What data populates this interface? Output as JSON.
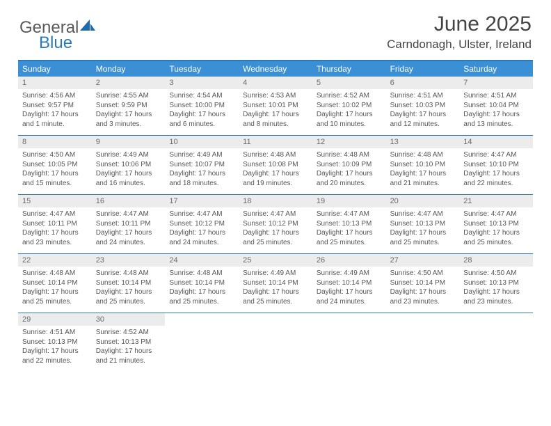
{
  "logo": {
    "line1": "General",
    "line2": "Blue"
  },
  "colors": {
    "accent": "#3b8fd4",
    "accent_border": "#2a7ab8",
    "day_num_bg": "#ececec",
    "day_num_fg": "#6a6a6a",
    "body_text": "#555555",
    "title_text": "#444444"
  },
  "title": "June 2025",
  "location": "Carndonagh, Ulster, Ireland",
  "day_headers": [
    "Sunday",
    "Monday",
    "Tuesday",
    "Wednesday",
    "Thursday",
    "Friday",
    "Saturday"
  ],
  "weeks": [
    [
      {
        "n": "1",
        "sr": "Sunrise: 4:56 AM",
        "ss": "Sunset: 9:57 PM",
        "dl": "Daylight: 17 hours and 1 minute."
      },
      {
        "n": "2",
        "sr": "Sunrise: 4:55 AM",
        "ss": "Sunset: 9:59 PM",
        "dl": "Daylight: 17 hours and 3 minutes."
      },
      {
        "n": "3",
        "sr": "Sunrise: 4:54 AM",
        "ss": "Sunset: 10:00 PM",
        "dl": "Daylight: 17 hours and 6 minutes."
      },
      {
        "n": "4",
        "sr": "Sunrise: 4:53 AM",
        "ss": "Sunset: 10:01 PM",
        "dl": "Daylight: 17 hours and 8 minutes."
      },
      {
        "n": "5",
        "sr": "Sunrise: 4:52 AM",
        "ss": "Sunset: 10:02 PM",
        "dl": "Daylight: 17 hours and 10 minutes."
      },
      {
        "n": "6",
        "sr": "Sunrise: 4:51 AM",
        "ss": "Sunset: 10:03 PM",
        "dl": "Daylight: 17 hours and 12 minutes."
      },
      {
        "n": "7",
        "sr": "Sunrise: 4:51 AM",
        "ss": "Sunset: 10:04 PM",
        "dl": "Daylight: 17 hours and 13 minutes."
      }
    ],
    [
      {
        "n": "8",
        "sr": "Sunrise: 4:50 AM",
        "ss": "Sunset: 10:05 PM",
        "dl": "Daylight: 17 hours and 15 minutes."
      },
      {
        "n": "9",
        "sr": "Sunrise: 4:49 AM",
        "ss": "Sunset: 10:06 PM",
        "dl": "Daylight: 17 hours and 16 minutes."
      },
      {
        "n": "10",
        "sr": "Sunrise: 4:49 AM",
        "ss": "Sunset: 10:07 PM",
        "dl": "Daylight: 17 hours and 18 minutes."
      },
      {
        "n": "11",
        "sr": "Sunrise: 4:48 AM",
        "ss": "Sunset: 10:08 PM",
        "dl": "Daylight: 17 hours and 19 minutes."
      },
      {
        "n": "12",
        "sr": "Sunrise: 4:48 AM",
        "ss": "Sunset: 10:09 PM",
        "dl": "Daylight: 17 hours and 20 minutes."
      },
      {
        "n": "13",
        "sr": "Sunrise: 4:48 AM",
        "ss": "Sunset: 10:10 PM",
        "dl": "Daylight: 17 hours and 21 minutes."
      },
      {
        "n": "14",
        "sr": "Sunrise: 4:47 AM",
        "ss": "Sunset: 10:10 PM",
        "dl": "Daylight: 17 hours and 22 minutes."
      }
    ],
    [
      {
        "n": "15",
        "sr": "Sunrise: 4:47 AM",
        "ss": "Sunset: 10:11 PM",
        "dl": "Daylight: 17 hours and 23 minutes."
      },
      {
        "n": "16",
        "sr": "Sunrise: 4:47 AM",
        "ss": "Sunset: 10:11 PM",
        "dl": "Daylight: 17 hours and 24 minutes."
      },
      {
        "n": "17",
        "sr": "Sunrise: 4:47 AM",
        "ss": "Sunset: 10:12 PM",
        "dl": "Daylight: 17 hours and 24 minutes."
      },
      {
        "n": "18",
        "sr": "Sunrise: 4:47 AM",
        "ss": "Sunset: 10:12 PM",
        "dl": "Daylight: 17 hours and 25 minutes."
      },
      {
        "n": "19",
        "sr": "Sunrise: 4:47 AM",
        "ss": "Sunset: 10:13 PM",
        "dl": "Daylight: 17 hours and 25 minutes."
      },
      {
        "n": "20",
        "sr": "Sunrise: 4:47 AM",
        "ss": "Sunset: 10:13 PM",
        "dl": "Daylight: 17 hours and 25 minutes."
      },
      {
        "n": "21",
        "sr": "Sunrise: 4:47 AM",
        "ss": "Sunset: 10:13 PM",
        "dl": "Daylight: 17 hours and 25 minutes."
      }
    ],
    [
      {
        "n": "22",
        "sr": "Sunrise: 4:48 AM",
        "ss": "Sunset: 10:14 PM",
        "dl": "Daylight: 17 hours and 25 minutes."
      },
      {
        "n": "23",
        "sr": "Sunrise: 4:48 AM",
        "ss": "Sunset: 10:14 PM",
        "dl": "Daylight: 17 hours and 25 minutes."
      },
      {
        "n": "24",
        "sr": "Sunrise: 4:48 AM",
        "ss": "Sunset: 10:14 PM",
        "dl": "Daylight: 17 hours and 25 minutes."
      },
      {
        "n": "25",
        "sr": "Sunrise: 4:49 AM",
        "ss": "Sunset: 10:14 PM",
        "dl": "Daylight: 17 hours and 25 minutes."
      },
      {
        "n": "26",
        "sr": "Sunrise: 4:49 AM",
        "ss": "Sunset: 10:14 PM",
        "dl": "Daylight: 17 hours and 24 minutes."
      },
      {
        "n": "27",
        "sr": "Sunrise: 4:50 AM",
        "ss": "Sunset: 10:14 PM",
        "dl": "Daylight: 17 hours and 23 minutes."
      },
      {
        "n": "28",
        "sr": "Sunrise: 4:50 AM",
        "ss": "Sunset: 10:13 PM",
        "dl": "Daylight: 17 hours and 23 minutes."
      }
    ],
    [
      {
        "n": "29",
        "sr": "Sunrise: 4:51 AM",
        "ss": "Sunset: 10:13 PM",
        "dl": "Daylight: 17 hours and 22 minutes."
      },
      {
        "n": "30",
        "sr": "Sunrise: 4:52 AM",
        "ss": "Sunset: 10:13 PM",
        "dl": "Daylight: 17 hours and 21 minutes."
      },
      null,
      null,
      null,
      null,
      null
    ]
  ]
}
